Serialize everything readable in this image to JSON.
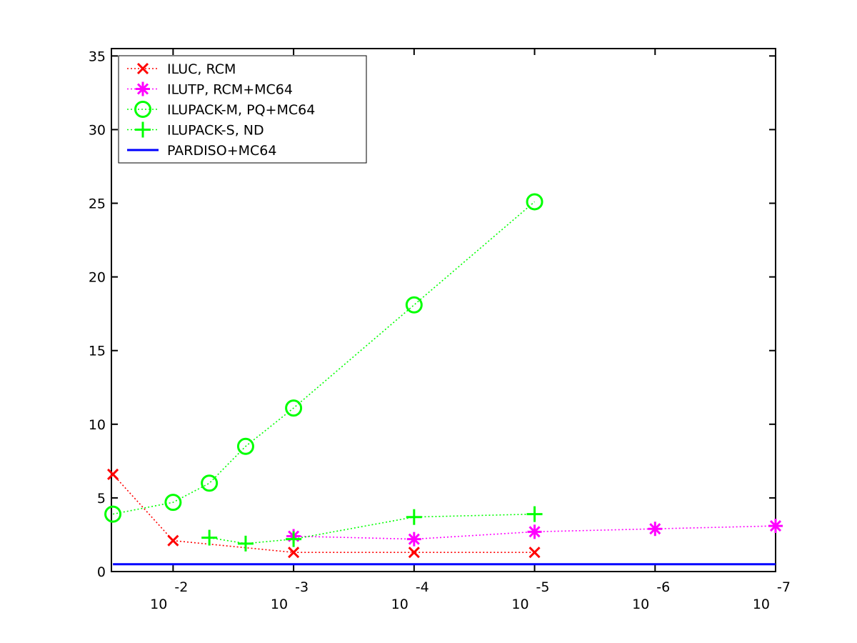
{
  "chart_data": {
    "type": "line",
    "title": "",
    "xlabel": "",
    "ylabel": "",
    "x_scale": "log",
    "x_reversed": true,
    "xlim": [
      0.0325,
      1e-07
    ],
    "ylim": [
      0,
      35.5
    ],
    "grid": false,
    "legend_position": "top-left",
    "y_ticks": [
      0,
      5,
      10,
      15,
      20,
      25,
      30,
      35
    ],
    "x_ticks": [
      {
        "value": 0.01,
        "base": "10",
        "exp": "-2"
      },
      {
        "value": 0.001,
        "base": "10",
        "exp": "-3"
      },
      {
        "value": 0.0001,
        "base": "10",
        "exp": "-4"
      },
      {
        "value": 1e-05,
        "base": "10",
        "exp": "-5"
      },
      {
        "value": 1e-06,
        "base": "10",
        "exp": "-6"
      },
      {
        "value": 1e-07,
        "base": "10",
        "exp": "-7"
      }
    ],
    "series": [
      {
        "name": "ILUC, RCM",
        "color": "#ff0000",
        "marker": "x",
        "line": "dotted",
        "x": [
          0.0316,
          0.01,
          0.001,
          0.0001,
          1e-05
        ],
        "y": [
          6.6,
          2.1,
          1.3,
          1.3,
          1.3
        ]
      },
      {
        "name": "ILUTP, RCM+MC64",
        "color": "#ff00ff",
        "marker": "star",
        "line": "dotted",
        "x": [
          0.001,
          0.0001,
          1e-05,
          1e-06,
          1e-07
        ],
        "y": [
          2.4,
          2.2,
          2.7,
          2.9,
          3.1
        ]
      },
      {
        "name": "ILUPACK-M, PQ+MC64",
        "color": "#00ff00",
        "marker": "circle",
        "line": "dotted",
        "x": [
          0.0316,
          0.01,
          0.005,
          0.0025,
          0.001,
          0.0001,
          1e-05
        ],
        "y": [
          3.9,
          4.7,
          6.0,
          8.5,
          11.1,
          18.1,
          25.1
        ]
      },
      {
        "name": "ILUPACK-S, ND",
        "color": "#00ff00",
        "marker": "plus",
        "line": "dashdot",
        "x": [
          0.005,
          0.0025,
          0.001,
          0.0001,
          1e-05
        ],
        "y": [
          2.3,
          1.9,
          2.2,
          3.7,
          3.9
        ]
      },
      {
        "name": "PARDISO+MC64",
        "color": "#0000ff",
        "marker": "none",
        "line": "solid",
        "x": [
          0.0316,
          1e-07
        ],
        "y": [
          0.5,
          0.5
        ]
      }
    ]
  }
}
